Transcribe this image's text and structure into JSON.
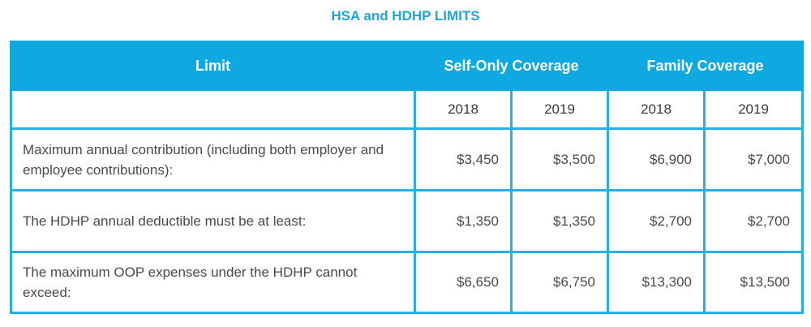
{
  "title": "HSA and HDHP LIMITS",
  "colors": {
    "accent": "#1aa7dc",
    "header_bg": "#0fa9e2",
    "border": "#29b0e2"
  },
  "table": {
    "headers": {
      "limit": "Limit",
      "self_only": "Self-Only Coverage",
      "family": "Family Coverage"
    },
    "years": [
      "2018",
      "2019",
      "2018",
      "2019"
    ],
    "rows": [
      {
        "label": "Maximum annual contribution (including both employer and employee contributions):",
        "values": [
          "$3,450",
          "$3,500",
          "$6,900",
          "$7,000"
        ]
      },
      {
        "label": "The HDHP annual deductible must be at least:",
        "values": [
          "$1,350",
          "$1,350",
          "$2,700",
          "$2,700"
        ]
      },
      {
        "label": "The maximum OOP expenses under the HDHP cannot exceed:",
        "values": [
          "$6,650",
          "$6,750",
          "$13,300",
          "$13,500"
        ]
      }
    ]
  }
}
